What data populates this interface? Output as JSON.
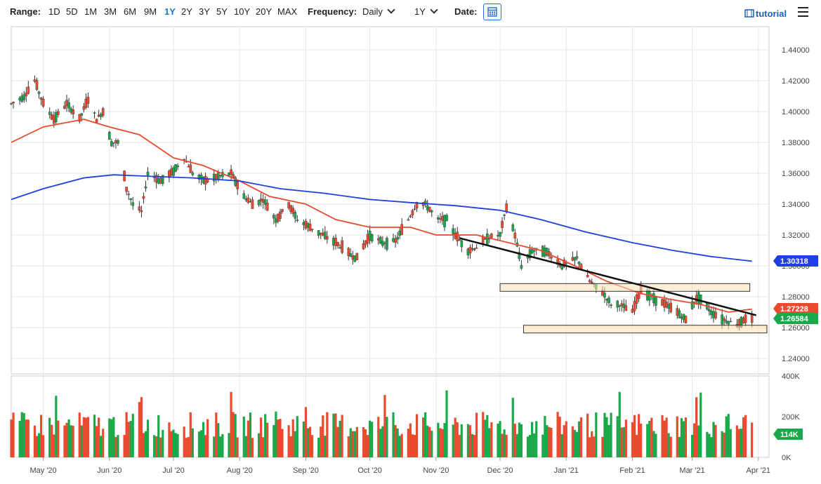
{
  "toolbar": {
    "range_label": "Range:",
    "ranges": [
      "1D",
      "5D",
      "1M",
      "3M",
      "6M",
      "9M",
      "1Y",
      "2Y",
      "3Y",
      "5Y",
      "10Y",
      "20Y",
      "MAX"
    ],
    "active_range": "1Y",
    "frequency_label": "Frequency:",
    "frequency_value": "Daily",
    "period_value": "1Y",
    "date_label": "Date:",
    "tutorial_label": "tutorial"
  },
  "chart_data": {
    "type": "candlestick",
    "price_axis": {
      "ylim": [
        1.23,
        1.455
      ],
      "ticks": [
        1.24,
        1.26,
        1.28,
        1.3,
        1.32,
        1.34,
        1.36,
        1.38,
        1.4,
        1.42,
        1.44
      ],
      "tick_labels": [
        "1.24000",
        "1.26000",
        "1.28000",
        "1.30000",
        "1.32000",
        "1.34000",
        "1.36000",
        "1.38000",
        "1.40000",
        "1.42000",
        "1.44000"
      ]
    },
    "volume_axis": {
      "ylim": [
        0,
        400
      ],
      "ticks": [
        0,
        200,
        400
      ],
      "tick_labels": [
        "0K",
        "200K",
        "400K"
      ]
    },
    "x_axis": {
      "labels": [
        "May '20",
        "Jun '20",
        "Jul '20",
        "Aug '20",
        "Sep '20",
        "Oct '20",
        "Nov '20",
        "Dec '20",
        "Jan '21",
        "Feb '21",
        "Mar '21",
        "Apr '21"
      ],
      "start": "2020-04-16",
      "end": "2021-04-06"
    },
    "close_anchors": [
      [
        "2020-04-16",
        1.405
      ],
      [
        "2020-04-22",
        1.41
      ],
      [
        "2020-04-27",
        1.42
      ],
      [
        "2020-05-01",
        1.405
      ],
      [
        "2020-05-06",
        1.395
      ],
      [
        "2020-05-12",
        1.405
      ],
      [
        "2020-05-18",
        1.395
      ],
      [
        "2020-05-22",
        1.408
      ],
      [
        "2020-05-26",
        1.395
      ],
      [
        "2020-05-29",
        1.4
      ],
      [
        "2020-06-02",
        1.38
      ],
      [
        "2020-06-05",
        1.38
      ],
      [
        "2020-06-09",
        1.35
      ],
      [
        "2020-06-12",
        1.34
      ],
      [
        "2020-06-16",
        1.335
      ],
      [
        "2020-06-19",
        1.36
      ],
      [
        "2020-06-25",
        1.355
      ],
      [
        "2020-06-30",
        1.36
      ],
      [
        "2020-07-06",
        1.37
      ],
      [
        "2020-07-10",
        1.36
      ],
      [
        "2020-07-16",
        1.355
      ],
      [
        "2020-07-22",
        1.358
      ],
      [
        "2020-07-28",
        1.36
      ],
      [
        "2020-08-03",
        1.345
      ],
      [
        "2020-08-07",
        1.34
      ],
      [
        "2020-08-12",
        1.343
      ],
      [
        "2020-08-18",
        1.33
      ],
      [
        "2020-08-24",
        1.34
      ],
      [
        "2020-08-28",
        1.33
      ],
      [
        "2020-09-03",
        1.325
      ],
      [
        "2020-09-09",
        1.32
      ],
      [
        "2020-09-15",
        1.315
      ],
      [
        "2020-09-21",
        1.308
      ],
      [
        "2020-09-25",
        1.305
      ],
      [
        "2020-10-01",
        1.32
      ],
      [
        "2020-10-07",
        1.315
      ],
      [
        "2020-10-13",
        1.316
      ],
      [
        "2020-10-19",
        1.33
      ],
      [
        "2020-10-23",
        1.34
      ],
      [
        "2020-10-27",
        1.34
      ],
      [
        "2020-11-02",
        1.33
      ],
      [
        "2020-11-06",
        1.33
      ],
      [
        "2020-11-10",
        1.32
      ],
      [
        "2020-11-16",
        1.31
      ],
      [
        "2020-11-20",
        1.312
      ],
      [
        "2020-11-25",
        1.318
      ],
      [
        "2020-12-01",
        1.32
      ],
      [
        "2020-12-04",
        1.338
      ],
      [
        "2020-12-08",
        1.32
      ],
      [
        "2020-12-11",
        1.3
      ],
      [
        "2020-12-16",
        1.31
      ],
      [
        "2020-12-22",
        1.31
      ],
      [
        "2020-12-30",
        1.3
      ],
      [
        "2021-01-06",
        1.305
      ],
      [
        "2021-01-12",
        1.29
      ],
      [
        "2021-01-18",
        1.283
      ],
      [
        "2021-01-22",
        1.275
      ],
      [
        "2021-01-26",
        1.275
      ],
      [
        "2021-02-01",
        1.27
      ],
      [
        "2021-02-05",
        1.285
      ],
      [
        "2021-02-10",
        1.28
      ],
      [
        "2021-02-16",
        1.275
      ],
      [
        "2021-02-22",
        1.27
      ],
      [
        "2021-02-26",
        1.265
      ],
      [
        "2021-03-01",
        1.275
      ],
      [
        "2021-03-04",
        1.28
      ],
      [
        "2021-03-10",
        1.27
      ],
      [
        "2021-03-16",
        1.265
      ],
      [
        "2021-03-22",
        1.262
      ],
      [
        "2021-03-25",
        1.265
      ],
      [
        "2021-03-29",
        1.265
      ]
    ],
    "series": [
      {
        "name": "",
        "color": "#ea4a2f",
        "kind": "moving-average",
        "points": [
          [
            "2020-04-16",
            1.38
          ],
          [
            "2020-05-01",
            1.39
          ],
          [
            "2020-05-20",
            1.395
          ],
          [
            "2020-06-01",
            1.39
          ],
          [
            "2020-06-15",
            1.385
          ],
          [
            "2020-07-01",
            1.37
          ],
          [
            "2020-07-15",
            1.365
          ],
          [
            "2020-08-01",
            1.355
          ],
          [
            "2020-08-15",
            1.345
          ],
          [
            "2020-09-01",
            1.34
          ],
          [
            "2020-09-15",
            1.33
          ],
          [
            "2020-10-01",
            1.325
          ],
          [
            "2020-10-20",
            1.325
          ],
          [
            "2020-11-01",
            1.32
          ],
          [
            "2020-11-20",
            1.32
          ],
          [
            "2020-12-05",
            1.315
          ],
          [
            "2020-12-20",
            1.31
          ],
          [
            "2021-01-05",
            1.3
          ],
          [
            "2021-01-20",
            1.29
          ],
          [
            "2021-02-05",
            1.282
          ],
          [
            "2021-02-20",
            1.278
          ],
          [
            "2021-03-05",
            1.275
          ],
          [
            "2021-03-18",
            1.27
          ],
          [
            "2021-03-29",
            1.272
          ]
        ]
      },
      {
        "name": "",
        "color": "#1f3fe0",
        "kind": "moving-average",
        "points": [
          [
            "2020-04-16",
            1.343
          ],
          [
            "2020-05-01",
            1.35
          ],
          [
            "2020-05-20",
            1.357
          ],
          [
            "2020-06-03",
            1.359
          ],
          [
            "2020-06-20",
            1.358
          ],
          [
            "2020-07-10",
            1.357
          ],
          [
            "2020-08-01",
            1.355
          ],
          [
            "2020-08-20",
            1.35
          ],
          [
            "2020-09-10",
            1.347
          ],
          [
            "2020-10-01",
            1.343
          ],
          [
            "2020-10-20",
            1.341
          ],
          [
            "2020-11-10",
            1.339
          ],
          [
            "2020-12-01",
            1.336
          ],
          [
            "2020-12-20",
            1.33
          ],
          [
            "2021-01-10",
            1.322
          ],
          [
            "2021-02-01",
            1.315
          ],
          [
            "2021-02-20",
            1.31
          ],
          [
            "2021-03-10",
            1.306
          ],
          [
            "2021-03-29",
            1.303
          ]
        ]
      }
    ],
    "trend_line": {
      "from": [
        "2020-11-12",
        1.318
      ],
      "to": [
        "2021-03-31",
        1.268
      ],
      "color": "#111111"
    },
    "zones": [
      {
        "from": "2020-12-01",
        "to": "2021-03-28",
        "y_top": 1.2885,
        "y_bottom": 1.2835
      },
      {
        "from": "2020-12-12",
        "to": "2021-04-05",
        "y_top": 1.2615,
        "y_bottom": 1.2565
      }
    ],
    "price_tags": [
      {
        "value": 1.30318,
        "label": "1.30318",
        "color": "#1f3fe0"
      },
      {
        "value": 1.27228,
        "label": "1.27228",
        "color": "#ea4a2f"
      },
      {
        "value": 1.26584,
        "label": "1.26584",
        "color": "#1aa84a"
      }
    ],
    "volume_tag": {
      "value": 114,
      "label": "114K",
      "color": "#1aa84a"
    },
    "volume_range": [
      95,
      330
    ],
    "up_color": "#1aa84a",
    "down_color": "#ea4a2f"
  }
}
